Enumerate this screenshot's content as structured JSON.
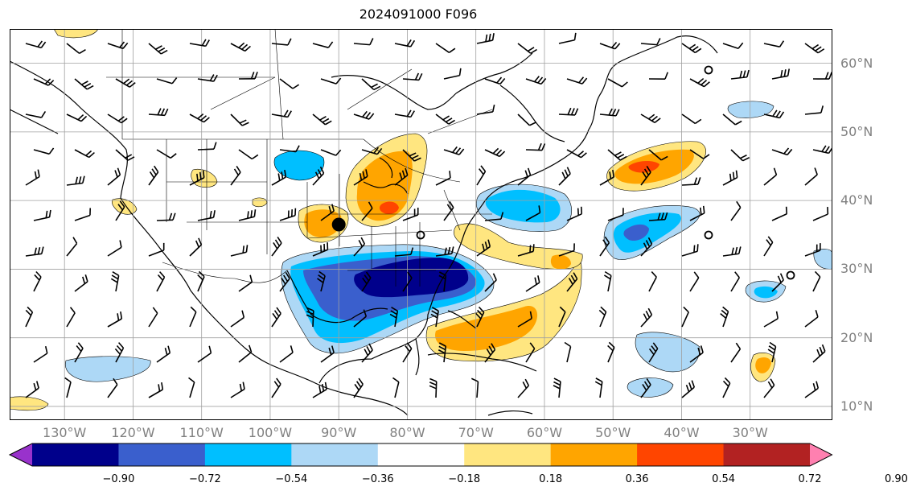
{
  "title": "2024091000 F096",
  "map": {
    "lat_labels": [
      "60°N",
      "50°N",
      "40°N",
      "30°N",
      "20°N",
      "10°N"
    ],
    "lat_values": [
      60,
      50,
      40,
      30,
      20,
      10
    ],
    "lon_labels": [
      "130°W",
      "120°W",
      "110°W",
      "100°W",
      "90°W",
      "80°W",
      "70°W",
      "60°W",
      "50°W",
      "40°W",
      "30°W"
    ],
    "lon_values": [
      -130,
      -120,
      -110,
      -100,
      -90,
      -80,
      -70,
      -60,
      -50,
      -40,
      -30
    ],
    "extent": {
      "lon_min": -138,
      "lon_max": -18,
      "lat_min": 8,
      "lat_max": 65
    },
    "marker": {
      "lon": -90,
      "lat": 36.5,
      "symbol": "large black dot"
    }
  },
  "colorbar": {
    "ticks": [
      "−0.90",
      "−0.72",
      "−0.54",
      "−0.36",
      "−0.18",
      "0.18",
      "0.36",
      "0.54",
      "0.72",
      "0.90"
    ],
    "colors": [
      "#9932cc",
      "#00008b",
      "#3a5fcd",
      "#00bfff",
      "#add8f6",
      "#ffffff",
      "#ffe680",
      "#ffa500",
      "#ff4500",
      "#b22222",
      "#ff80b0"
    ],
    "extend": "both"
  },
  "fields": {
    "negative_anomalies": [
      {
        "region": "Gulf of Mexico / Southeast US",
        "min_level": "−0.72"
      },
      {
        "region": "Western Atlantic off Mid-Atlantic coast",
        "min_level": "−0.36"
      },
      {
        "region": "Central Atlantic near 50°W 35°N",
        "min_level": "−0.72"
      }
    ],
    "positive_anomalies": [
      {
        "region": "Great Lakes",
        "max_level": "0.72"
      },
      {
        "region": "Caribbean / subtropical Atlantic",
        "max_level": "0.54"
      },
      {
        "region": "North Atlantic near 50°W 45°N",
        "max_level": "0.72"
      }
    ]
  }
}
